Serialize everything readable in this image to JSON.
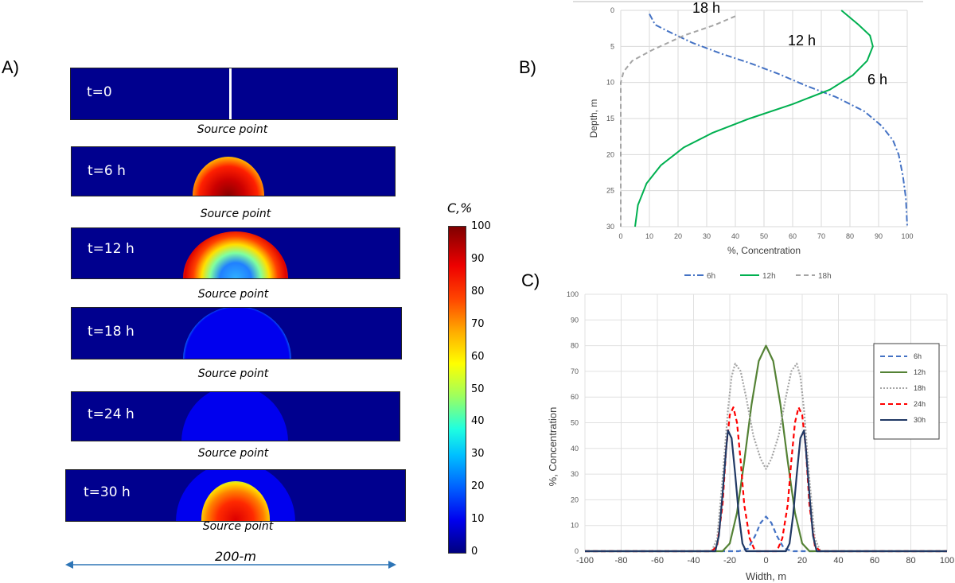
{
  "panelA": {
    "letter": "A)",
    "strips": [
      {
        "time": "t=0",
        "source": "Source point"
      },
      {
        "time": "t=6 h",
        "source": "Source point"
      },
      {
        "time": "t=12 h",
        "source": "Source point"
      },
      {
        "time": "t=18 h",
        "source": "Source point"
      },
      {
        "time": "t=24 h",
        "source": "Source point"
      },
      {
        "time": "t=30 h",
        "source": "Source point"
      }
    ],
    "colorbar": {
      "title": "C,%",
      "ticks": [
        "100",
        "90",
        "80",
        "70",
        "60",
        "50",
        "40",
        "30",
        "20",
        "10",
        "0"
      ]
    },
    "width_label": "200-m"
  },
  "panelB": {
    "letter": "B)"
  },
  "panelC": {
    "letter": "C)"
  },
  "chart_data": [
    {
      "id": "B",
      "type": "line",
      "xlabel": "%, Concentration",
      "ylabel": "Depth, m",
      "xlim": [
        0,
        100
      ],
      "ylim": [
        0,
        30
      ],
      "y_inverted": true,
      "xticks": [
        "0",
        "10",
        "20",
        "30",
        "40",
        "50",
        "60",
        "70",
        "80",
        "90",
        "100"
      ],
      "yticks": [
        "0",
        "5",
        "10",
        "15",
        "20",
        "25",
        "30"
      ],
      "annotations": [
        "18 h",
        "12 h",
        "6 h"
      ],
      "legend": [
        "6h",
        "12h",
        "18h"
      ],
      "legend_position": "bottom",
      "series": [
        {
          "name": "6h",
          "color": "#4472c4",
          "style": "dashdot",
          "points": [
            [
              10,
              0.5
            ],
            [
              12,
              2
            ],
            [
              17,
              3
            ],
            [
              25,
              4.5
            ],
            [
              35,
              6
            ],
            [
              45,
              7.3
            ],
            [
              55,
              8.8
            ],
            [
              65,
              10.5
            ],
            [
              75,
              12
            ],
            [
              85,
              14
            ],
            [
              91,
              16
            ],
            [
              95,
              18
            ],
            [
              97,
              20
            ],
            [
              98.5,
              23
            ],
            [
              99.5,
              26
            ],
            [
              100,
              30
            ]
          ]
        },
        {
          "name": "12h",
          "color": "#00b050",
          "style": "solid",
          "points": [
            [
              77,
              0
            ],
            [
              83,
              2
            ],
            [
              87,
              3.5
            ],
            [
              88,
              5
            ],
            [
              86,
              7
            ],
            [
              81,
              9
            ],
            [
              73,
              11
            ],
            [
              60,
              13
            ],
            [
              45,
              15
            ],
            [
              32,
              17
            ],
            [
              22,
              19
            ],
            [
              14,
              21.5
            ],
            [
              9,
              24
            ],
            [
              6,
              27
            ],
            [
              5,
              30
            ]
          ]
        },
        {
          "name": "18h",
          "color": "#a5a5a5",
          "style": "dash",
          "points": [
            [
              40,
              0.8
            ],
            [
              33,
              2
            ],
            [
              22,
              3.5
            ],
            [
              11,
              5.5
            ],
            [
              4,
              7
            ],
            [
              1,
              8.5
            ],
            [
              0,
              10
            ],
            [
              0,
              15
            ],
            [
              0,
              20
            ],
            [
              0,
              25
            ],
            [
              0,
              30
            ]
          ]
        }
      ]
    },
    {
      "id": "C",
      "type": "line",
      "xlabel": "Width, m",
      "ylabel": "%, Concentration",
      "xlim": [
        -100,
        100
      ],
      "ylim": [
        0,
        100
      ],
      "xticks": [
        "-100",
        "-80",
        "-60",
        "-40",
        "-20",
        "0",
        "20",
        "40",
        "60",
        "80",
        "100"
      ],
      "yticks": [
        "0",
        "10",
        "20",
        "30",
        "40",
        "50",
        "60",
        "70",
        "80",
        "90",
        "100"
      ],
      "legend": [
        "6h",
        "12h",
        "18h",
        "24h",
        "30h"
      ],
      "legend_position": "top-right",
      "series": [
        {
          "name": "6h",
          "color": "#4472c4",
          "style": "dash",
          "points": [
            [
              -100,
              0
            ],
            [
              -15,
              0
            ],
            [
              -10,
              1
            ],
            [
              -6,
              6
            ],
            [
              -3,
              11
            ],
            [
              0,
              13.5
            ],
            [
              3,
              11
            ],
            [
              6,
              6
            ],
            [
              10,
              1
            ],
            [
              15,
              0
            ],
            [
              100,
              0
            ]
          ]
        },
        {
          "name": "12h",
          "color": "#548235",
          "style": "solid",
          "points": [
            [
              -100,
              0
            ],
            [
              -24,
              0
            ],
            [
              -20,
              3
            ],
            [
              -16,
              15
            ],
            [
              -12,
              35
            ],
            [
              -8,
              57
            ],
            [
              -4,
              74
            ],
            [
              0,
              80
            ],
            [
              4,
              74
            ],
            [
              8,
              57
            ],
            [
              12,
              35
            ],
            [
              16,
              15
            ],
            [
              20,
              3
            ],
            [
              24,
              0
            ],
            [
              100,
              0
            ]
          ]
        },
        {
          "name": "18h",
          "color": "#a5a5a5",
          "style": "dot",
          "points": [
            [
              -100,
              0
            ],
            [
              -30,
              0
            ],
            [
              -27,
              5
            ],
            [
              -24,
              28
            ],
            [
              -21,
              55
            ],
            [
              -19,
              68
            ],
            [
              -17,
              73
            ],
            [
              -14,
              70
            ],
            [
              -11,
              60
            ],
            [
              -7,
              45
            ],
            [
              -3,
              36
            ],
            [
              0,
              32
            ],
            [
              3,
              36
            ],
            [
              7,
              45
            ],
            [
              11,
              60
            ],
            [
              14,
              70
            ],
            [
              17,
              73
            ],
            [
              19,
              68
            ],
            [
              21,
              55
            ],
            [
              24,
              28
            ],
            [
              27,
              5
            ],
            [
              30,
              0
            ],
            [
              100,
              0
            ]
          ]
        },
        {
          "name": "24h",
          "color": "#ff0000",
          "style": "dash",
          "points": [
            [
              -100,
              0
            ],
            [
              -30,
              0
            ],
            [
              -27,
              2
            ],
            [
              -24,
              18
            ],
            [
              -22,
              40
            ],
            [
              -20,
              53
            ],
            [
              -18,
              56
            ],
            [
              -16,
              50
            ],
            [
              -14,
              35
            ],
            [
              -12,
              18
            ],
            [
              -9,
              5
            ],
            [
              -6,
              0
            ],
            [
              6,
              0
            ],
            [
              9,
              5
            ],
            [
              12,
              18
            ],
            [
              14,
              35
            ],
            [
              16,
              50
            ],
            [
              18,
              56
            ],
            [
              20,
              53
            ],
            [
              22,
              40
            ],
            [
              24,
              18
            ],
            [
              27,
              2
            ],
            [
              30,
              0
            ],
            [
              100,
              0
            ]
          ]
        },
        {
          "name": "30h",
          "color": "#203864",
          "style": "solid",
          "points": [
            [
              -100,
              0
            ],
            [
              -28,
              0
            ],
            [
              -26,
              6
            ],
            [
              -24,
              22
            ],
            [
              -22,
              40
            ],
            [
              -21,
              47
            ],
            [
              -19,
              44
            ],
            [
              -17,
              30
            ],
            [
              -15,
              14
            ],
            [
              -13,
              3
            ],
            [
              -11,
              0
            ],
            [
              11,
              0
            ],
            [
              13,
              3
            ],
            [
              15,
              14
            ],
            [
              17,
              30
            ],
            [
              19,
              44
            ],
            [
              21,
              47
            ],
            [
              22,
              40
            ],
            [
              24,
              22
            ],
            [
              26,
              6
            ],
            [
              28,
              0
            ],
            [
              100,
              0
            ]
          ]
        }
      ]
    }
  ]
}
